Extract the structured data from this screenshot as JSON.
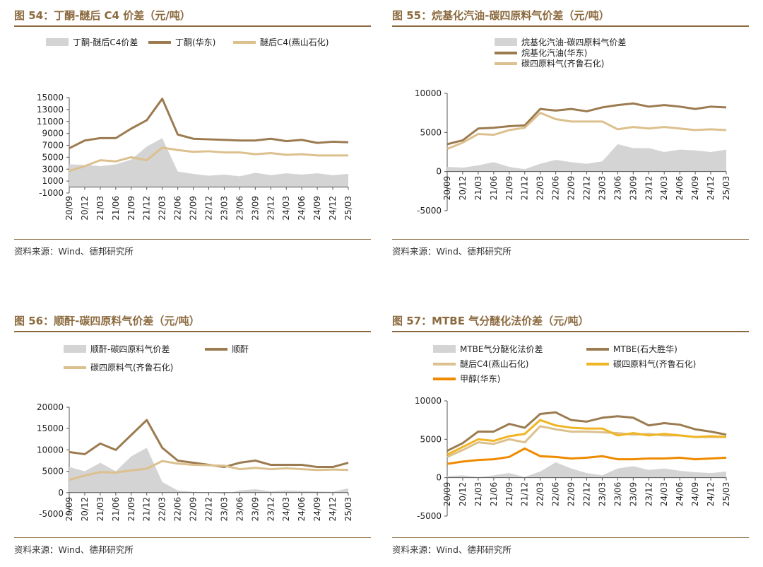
{
  "source_text": "资料来源：Wind、德邦研究所",
  "x_ticks": [
    "20/09",
    "20/12",
    "21/03",
    "21/06",
    "21/09",
    "21/12",
    "22/03",
    "22/06",
    "22/09",
    "22/12",
    "23/03",
    "23/06",
    "23/09",
    "23/12",
    "24/03",
    "24/06",
    "24/09",
    "24/12",
    "25/03"
  ],
  "colors": {
    "dark": "#9b7b4f",
    "light": "#dcc08e",
    "spread": "#d4d4d4",
    "gold": "#f0b525",
    "orange": "#f08a00",
    "title": "#8c6a3f"
  },
  "chart_data": [
    {
      "type": "line",
      "title": "图 54：丁酮-醚后 C4 价差（元/吨）",
      "ylim": [
        -1000,
        15000
      ],
      "yticks": [
        -1000,
        1000,
        3000,
        5000,
        7000,
        9000,
        11000,
        13000,
        15000
      ],
      "x": [
        "20/09",
        "20/12",
        "21/03",
        "21/06",
        "21/09",
        "21/12",
        "22/03",
        "22/06",
        "22/09",
        "22/12",
        "23/03",
        "23/06",
        "23/09",
        "23/12",
        "24/03",
        "24/06",
        "24/09",
        "24/12",
        "25/03"
      ],
      "series": [
        {
          "name": "丁酮-醚后C4价差",
          "kind": "area",
          "color": "#d4d4d4",
          "values": [
            3800,
            3700,
            3500,
            3800,
            4600,
            6800,
            8200,
            2600,
            2200,
            1900,
            2100,
            1800,
            2400,
            2000,
            2300,
            2100,
            2300,
            2000,
            2200
          ]
        },
        {
          "name": "丁酮(华东)",
          "kind": "line",
          "color": "#9b7b4f",
          "values": [
            6500,
            7800,
            8200,
            8200,
            9800,
            11200,
            14800,
            8800,
            8100,
            8000,
            7900,
            7800,
            7800,
            8100,
            7700,
            7900,
            7400,
            7600,
            7500
          ]
        },
        {
          "name": "醚后C4(燕山石化)",
          "kind": "line",
          "color": "#dcc08e",
          "values": [
            2700,
            3500,
            4500,
            4300,
            5000,
            4500,
            6600,
            6200,
            5900,
            6000,
            5800,
            5800,
            5500,
            5700,
            5400,
            5500,
            5300,
            5300,
            5300
          ]
        }
      ]
    },
    {
      "type": "line",
      "title": "图 55：烷基化汽油-碳四原料气价差（元/吨）",
      "ylim": [
        -5000,
        10000
      ],
      "yticks": [
        -5000,
        0,
        5000,
        10000
      ],
      "x": [
        "20/09",
        "20/12",
        "21/03",
        "21/06",
        "21/09",
        "21/12",
        "22/03",
        "22/06",
        "22/09",
        "22/12",
        "23/03",
        "23/06",
        "23/09",
        "23/12",
        "24/03",
        "24/06",
        "24/09",
        "24/12",
        "25/03"
      ],
      "series": [
        {
          "name": "烷基化汽油-碳四原料气价差",
          "kind": "area",
          "color": "#d4d4d4",
          "values": [
            600,
            500,
            800,
            1200,
            600,
            300,
            1000,
            1500,
            1200,
            1000,
            1300,
            3500,
            3000,
            3000,
            2500,
            2800,
            2700,
            2500,
            2800
          ]
        },
        {
          "name": "烷基化汽油(华东)",
          "kind": "line",
          "color": "#9b7b4f",
          "values": [
            3500,
            4000,
            5500,
            5600,
            5800,
            5900,
            8000,
            7800,
            8000,
            7700,
            8200,
            8500,
            8700,
            8300,
            8500,
            8300,
            8000,
            8300,
            8200
          ]
        },
        {
          "name": "碳四原料气(齐鲁石化)",
          "kind": "line",
          "color": "#dcc08e",
          "values": [
            2900,
            3700,
            4800,
            4700,
            5300,
            5600,
            7500,
            6700,
            6400,
            6400,
            6400,
            5400,
            5700,
            5500,
            5700,
            5500,
            5300,
            5400,
            5300
          ]
        }
      ]
    },
    {
      "type": "line",
      "title": "图 56：顺酐-碳四原料气价差（元/吨）",
      "ylim": [
        -5000,
        20000
      ],
      "yticks": [
        -5000,
        0,
        5000,
        10000,
        15000,
        20000
      ],
      "x": [
        "20/09",
        "20/12",
        "21/03",
        "21/06",
        "21/09",
        "21/12",
        "22/03",
        "22/06",
        "22/09",
        "22/12",
        "23/03",
        "23/06",
        "23/09",
        "23/12",
        "24/03",
        "24/06",
        "24/09",
        "24/12",
        "25/03"
      ],
      "series": [
        {
          "name": "顺酐-碳四原料气价差",
          "kind": "area",
          "color": "#d4d4d4",
          "values": [
            6000,
            5000,
            7000,
            5000,
            8500,
            10500,
            2500,
            500,
            200,
            100,
            -300,
            500,
            800,
            300,
            500,
            400,
            300,
            200,
            1000
          ]
        },
        {
          "name": "顺酐",
          "kind": "line",
          "color": "#9b7b4f",
          "values": [
            9500,
            9000,
            11500,
            10000,
            13500,
            17000,
            10500,
            7500,
            7000,
            6500,
            6000,
            7000,
            7500,
            6500,
            6500,
            6500,
            6000,
            6000,
            7000
          ]
        },
        {
          "name": "碳四原料气(齐鲁石化)",
          "kind": "line",
          "color": "#dcc08e",
          "values": [
            3000,
            4000,
            4800,
            4700,
            5200,
            5600,
            7400,
            6800,
            6500,
            6400,
            6300,
            5500,
            5800,
            5500,
            5700,
            5500,
            5300,
            5400,
            5300
          ]
        }
      ]
    },
    {
      "type": "line",
      "title": "图 57：MTBE 气分醚化法价差（元/吨）",
      "ylim": [
        -5000,
        10000
      ],
      "yticks": [
        -5000,
        0,
        5000,
        10000
      ],
      "x": [
        "20/09",
        "20/12",
        "21/03",
        "21/06",
        "21/09",
        "21/12",
        "22/03",
        "22/06",
        "22/09",
        "22/12",
        "23/03",
        "23/06",
        "23/09",
        "23/12",
        "24/03",
        "24/06",
        "24/09",
        "24/12",
        "25/03"
      ],
      "series": [
        {
          "name": "MTBE气分醚化法价差",
          "kind": "area",
          "color": "#d4d4d4",
          "values": [
            200,
            300,
            100,
            300,
            600,
            100,
            800,
            2000,
            1200,
            600,
            300,
            1200,
            1500,
            1000,
            1200,
            900,
            700,
            600,
            800
          ]
        },
        {
          "name": "MTBE(石大胜华)",
          "kind": "line",
          "color": "#9b7b4f",
          "values": [
            3500,
            4500,
            6000,
            6000,
            7000,
            6500,
            8300,
            8500,
            7500,
            7300,
            7800,
            8000,
            7800,
            6800,
            7100,
            6900,
            6300,
            6000,
            5600
          ]
        },
        {
          "name": "醚后C4(燕山石化)",
          "kind": "line",
          "color": "#dcc08e",
          "values": [
            2700,
            3600,
            4600,
            4400,
            5000,
            4600,
            6700,
            6300,
            6000,
            6000,
            5900,
            5800,
            5600,
            5700,
            5500,
            5500,
            5300,
            5300,
            5300
          ]
        },
        {
          "name": "碳四原料气(齐鲁石化)",
          "kind": "line",
          "color": "#f0b525",
          "values": [
            3000,
            4000,
            5000,
            4800,
            5400,
            5700,
            7500,
            6800,
            6500,
            6400,
            6400,
            5500,
            5800,
            5500,
            5700,
            5500,
            5300,
            5400,
            5300
          ]
        },
        {
          "name": "甲醇(华东)",
          "kind": "line",
          "color": "#f08a00",
          "values": [
            1800,
            2100,
            2300,
            2400,
            2700,
            3800,
            2800,
            2700,
            2500,
            2600,
            2800,
            2400,
            2400,
            2500,
            2500,
            2600,
            2400,
            2500,
            2600
          ]
        }
      ]
    }
  ]
}
